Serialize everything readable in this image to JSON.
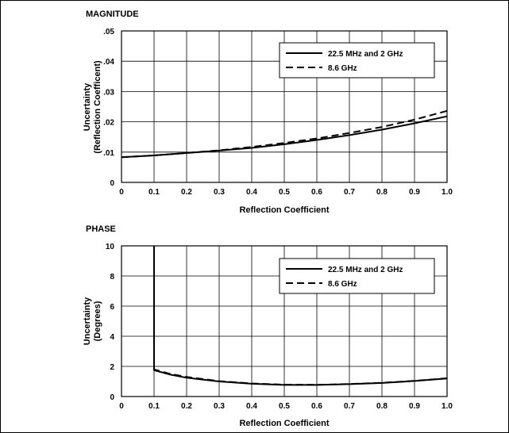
{
  "chart_data": [
    {
      "type": "line",
      "title": "MAGNITUDE",
      "xlabel": "Reflection Coefficient",
      "ylabel": [
        "Uncertainty",
        "(Reflection Coefficent)"
      ],
      "xlim": [
        0,
        1.0
      ],
      "ylim": [
        0,
        0.05
      ],
      "x_ticks": [
        "0",
        "0.1",
        "0.2",
        "0.3",
        "0.4",
        "0.5",
        "0.6",
        "0.7",
        "0.8",
        "0.9",
        "1.0"
      ],
      "y_ticks": [
        "0",
        ".01",
        ".02",
        ".03",
        ".04",
        ".05"
      ],
      "grid": true,
      "legend_position": "top-right",
      "series": [
        {
          "name": "22.5 MHz and 2 GHz",
          "style": "solid",
          "x": [
            0,
            0.1,
            0.2,
            0.3,
            0.4,
            0.5,
            0.6,
            0.7,
            0.8,
            0.9,
            1.0
          ],
          "y": [
            0.0083,
            0.0089,
            0.0097,
            0.0105,
            0.0114,
            0.0126,
            0.014,
            0.0156,
            0.0174,
            0.0195,
            0.0218
          ]
        },
        {
          "name": "8.6 GHz",
          "style": "dashed",
          "x": [
            0,
            0.1,
            0.2,
            0.3,
            0.4,
            0.5,
            0.6,
            0.7,
            0.8,
            0.9,
            1.0
          ],
          "y": [
            0.0083,
            0.0089,
            0.0097,
            0.0106,
            0.0117,
            0.013,
            0.0145,
            0.0163,
            0.0183,
            0.0207,
            0.0236
          ]
        }
      ]
    },
    {
      "type": "line",
      "title": "PHASE",
      "xlabel": "Reflection Coefficient",
      "ylabel": [
        "Uncertainty",
        "(Degrees)"
      ],
      "xlim": [
        0,
        1.0
      ],
      "ylim": [
        0,
        10
      ],
      "x_ticks": [
        "0",
        "0.1",
        "0.2",
        "0.3",
        "0.4",
        "0.5",
        "0.6",
        "0.7",
        "0.8",
        "0.9",
        "1.0"
      ],
      "y_ticks": [
        "0",
        "2",
        "4",
        "6",
        "8",
        "10"
      ],
      "grid": true,
      "legend_position": "top-right",
      "series": [
        {
          "name": "22.5 MHz and 2 GHz",
          "style": "solid",
          "x": [
            0.1,
            0.1,
            0.15,
            0.2,
            0.3,
            0.4,
            0.5,
            0.6,
            0.7,
            0.8,
            0.9,
            1.0
          ],
          "y": [
            10,
            1.75,
            1.45,
            1.25,
            1.0,
            0.85,
            0.77,
            0.77,
            0.82,
            0.9,
            1.03,
            1.2
          ]
        },
        {
          "name": "8.6 GHz",
          "style": "dashed",
          "x": [
            0.1,
            0.1,
            0.15,
            0.2,
            0.3,
            0.4,
            0.5,
            0.6,
            0.7,
            0.8,
            0.9,
            1.0
          ],
          "y": [
            10,
            1.8,
            1.5,
            1.3,
            1.02,
            0.87,
            0.79,
            0.78,
            0.83,
            0.91,
            1.04,
            1.21
          ]
        }
      ]
    }
  ]
}
